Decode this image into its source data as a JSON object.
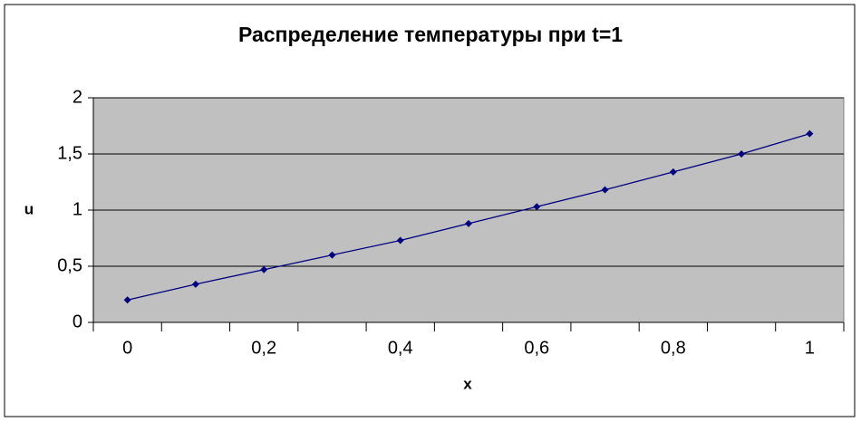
{
  "chart_data": {
    "type": "line",
    "title": "Распределение температуры при t=1",
    "xlabel": "x",
    "ylabel": "u",
    "categories": [
      "0",
      null,
      "0,2",
      null,
      "0,4",
      null,
      "0,6",
      null,
      "0,8",
      null,
      "1"
    ],
    "values": [
      0.2,
      0.34,
      0.47,
      0.6,
      0.73,
      0.88,
      1.03,
      1.18,
      1.34,
      1.5,
      1.68
    ],
    "color": "#000080",
    "ylim": [
      0,
      2
    ],
    "yticks": [
      0,
      {
        "value": 0.5,
        "label": "0,5"
      },
      1,
      {
        "value": 1.5,
        "label": "1,5"
      },
      2
    ],
    "grid": true
  }
}
